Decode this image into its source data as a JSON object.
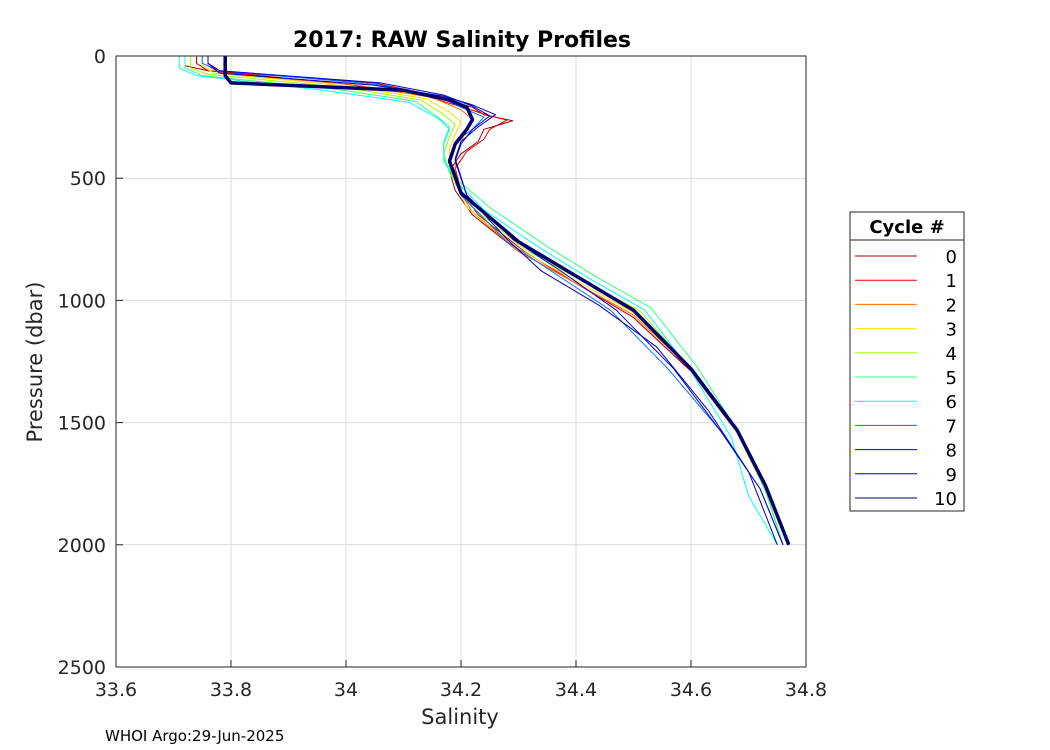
{
  "chart_data": {
    "type": "line",
    "title": "2017: RAW Salinity Profiles",
    "xlabel": "Salinity",
    "ylabel": "Pressure (dbar)",
    "xlim": [
      33.6,
      34.8
    ],
    "ylim": [
      0,
      2500
    ],
    "y_reversed": true,
    "grid": true,
    "xticks": [
      33.6,
      33.8,
      34.0,
      34.2,
      34.4,
      34.6,
      34.8
    ],
    "xtick_labels": [
      "33.6",
      "33.8",
      "34",
      "34.2",
      "34.4",
      "34.6",
      "34.8"
    ],
    "yticks": [
      0,
      500,
      1000,
      1500,
      2000,
      2500
    ],
    "ytick_labels": [
      "0",
      "500",
      "1000",
      "1500",
      "2000",
      "2500"
    ],
    "legend": {
      "title": "Cycle #",
      "placement": "right"
    },
    "series": [
      {
        "name": "0",
        "color": "#a00000",
        "x": [
          33.72,
          33.72,
          33.76,
          34.05,
          34.15,
          34.22,
          34.24,
          34.29,
          34.24,
          34.23,
          34.2,
          34.18,
          34.19,
          34.22,
          34.3,
          34.4,
          34.5,
          34.6,
          34.68,
          34.73,
          34.76
        ],
        "y": [
          0,
          40,
          60,
          110,
          160,
          210,
          240,
          265,
          300,
          350,
          400,
          470,
          550,
          650,
          800,
          930,
          1070,
          1290,
          1540,
          1780,
          2000
        ]
      },
      {
        "name": "1",
        "color": "#e00000",
        "x": [
          33.74,
          33.74,
          33.76,
          34.0,
          34.14,
          34.21,
          34.25,
          34.28,
          34.25,
          34.24,
          34.21,
          34.19,
          34.2,
          34.23,
          34.31,
          34.4,
          34.5,
          34.6,
          34.68,
          34.73,
          34.76
        ],
        "y": [
          0,
          30,
          60,
          115,
          165,
          215,
          245,
          262,
          300,
          340,
          390,
          460,
          550,
          650,
          800,
          930,
          1070,
          1290,
          1540,
          1780,
          2000
        ]
      },
      {
        "name": "2",
        "color": "#ff7000",
        "x": [
          33.76,
          33.76,
          33.78,
          34.02,
          34.15,
          34.2,
          34.22,
          34.21,
          34.2,
          34.19,
          34.19,
          34.22,
          34.3,
          34.4,
          34.5,
          34.6,
          34.68,
          34.73,
          34.76
        ],
        "y": [
          0,
          40,
          70,
          120,
          170,
          220,
          260,
          300,
          350,
          420,
          520,
          640,
          800,
          930,
          1060,
          1280,
          1530,
          1780,
          2000
        ]
      },
      {
        "name": "3",
        "color": "#ffdf00",
        "x": [
          33.75,
          33.75,
          33.77,
          34.01,
          34.14,
          34.18,
          34.2,
          34.19,
          34.18,
          34.18,
          34.21,
          34.3,
          34.4,
          34.5,
          34.6,
          34.68,
          34.73,
          34.76
        ],
        "y": [
          0,
          40,
          70,
          125,
          175,
          230,
          270,
          320,
          380,
          460,
          620,
          790,
          920,
          1050,
          1280,
          1540,
          1780,
          2000
        ]
      },
      {
        "name": "4",
        "color": "#9fff00",
        "x": [
          33.73,
          33.73,
          33.76,
          34.0,
          34.13,
          34.17,
          34.19,
          34.18,
          34.17,
          34.18,
          34.22,
          34.31,
          34.41,
          34.51,
          34.6,
          34.68,
          34.73,
          34.76
        ],
        "y": [
          0,
          50,
          75,
          130,
          180,
          240,
          280,
          330,
          400,
          480,
          620,
          790,
          920,
          1040,
          1280,
          1540,
          1780,
          2000
        ]
      },
      {
        "name": "5",
        "color": "#30ff80",
        "x": [
          33.72,
          33.72,
          33.75,
          33.98,
          34.12,
          34.16,
          34.18,
          34.17,
          34.17,
          34.19,
          34.25,
          34.35,
          34.44,
          34.53,
          34.61,
          34.68,
          34.73,
          34.76
        ],
        "y": [
          0,
          50,
          80,
          135,
          185,
          250,
          290,
          350,
          420,
          500,
          620,
          780,
          910,
          1030,
          1270,
          1530,
          1780,
          2000
        ]
      },
      {
        "name": "6",
        "color": "#00ffff",
        "x": [
          33.71,
          33.71,
          33.74,
          33.96,
          34.11,
          34.16,
          34.18,
          34.17,
          34.17,
          34.19,
          34.24,
          34.34,
          34.43,
          34.52,
          34.6,
          34.67,
          34.7,
          34.75
        ],
        "y": [
          0,
          50,
          80,
          140,
          190,
          255,
          300,
          360,
          430,
          510,
          630,
          790,
          920,
          1040,
          1290,
          1560,
          1800,
          2000
        ]
      },
      {
        "name": "7",
        "color": "#0070ff",
        "x": [
          33.75,
          33.75,
          33.78,
          34.05,
          34.16,
          34.2,
          34.24,
          34.22,
          34.19,
          34.18,
          34.2,
          34.28,
          34.37,
          34.46,
          34.56,
          34.65,
          34.72,
          34.76
        ],
        "y": [
          0,
          30,
          60,
          115,
          165,
          210,
          250,
          300,
          350,
          420,
          570,
          760,
          900,
          1040,
          1280,
          1530,
          1770,
          2000
        ]
      },
      {
        "name": "8",
        "color": "#0000e0",
        "x": [
          33.76,
          33.76,
          33.78,
          34.06,
          34.17,
          34.22,
          34.25,
          34.22,
          34.2,
          34.19,
          34.21,
          34.29,
          34.38,
          34.47,
          34.57,
          34.65,
          34.72,
          34.76
        ],
        "y": [
          0,
          30,
          60,
          110,
          160,
          205,
          245,
          300,
          360,
          430,
          570,
          750,
          890,
          1040,
          1280,
          1530,
          1770,
          2000
        ]
      },
      {
        "name": "9",
        "color": "#0000b0",
        "x": [
          33.76,
          33.76,
          33.78,
          34.05,
          34.17,
          34.22,
          34.26,
          34.23,
          34.2,
          34.19,
          34.21,
          34.28,
          34.34,
          34.44,
          34.54,
          34.63,
          34.7,
          34.75
        ],
        "y": [
          0,
          30,
          70,
          120,
          165,
          200,
          240,
          290,
          350,
          420,
          570,
          750,
          880,
          1020,
          1190,
          1450,
          1700,
          2000
        ]
      },
      {
        "name": "10",
        "color": "#00006e",
        "width": 3.5,
        "x": [
          33.79,
          33.79,
          33.8,
          34.1,
          34.18,
          34.21,
          34.22,
          34.21,
          34.19,
          34.18,
          34.2,
          34.3,
          34.4,
          34.5,
          34.6,
          34.68,
          34.73,
          34.77
        ],
        "y": [
          0,
          80,
          110,
          140,
          180,
          210,
          260,
          300,
          360,
          430,
          560,
          760,
          900,
          1040,
          1280,
          1530,
          1760,
          2000
        ]
      }
    ]
  },
  "footer": "WHOI Argo:29-Jun-2025"
}
